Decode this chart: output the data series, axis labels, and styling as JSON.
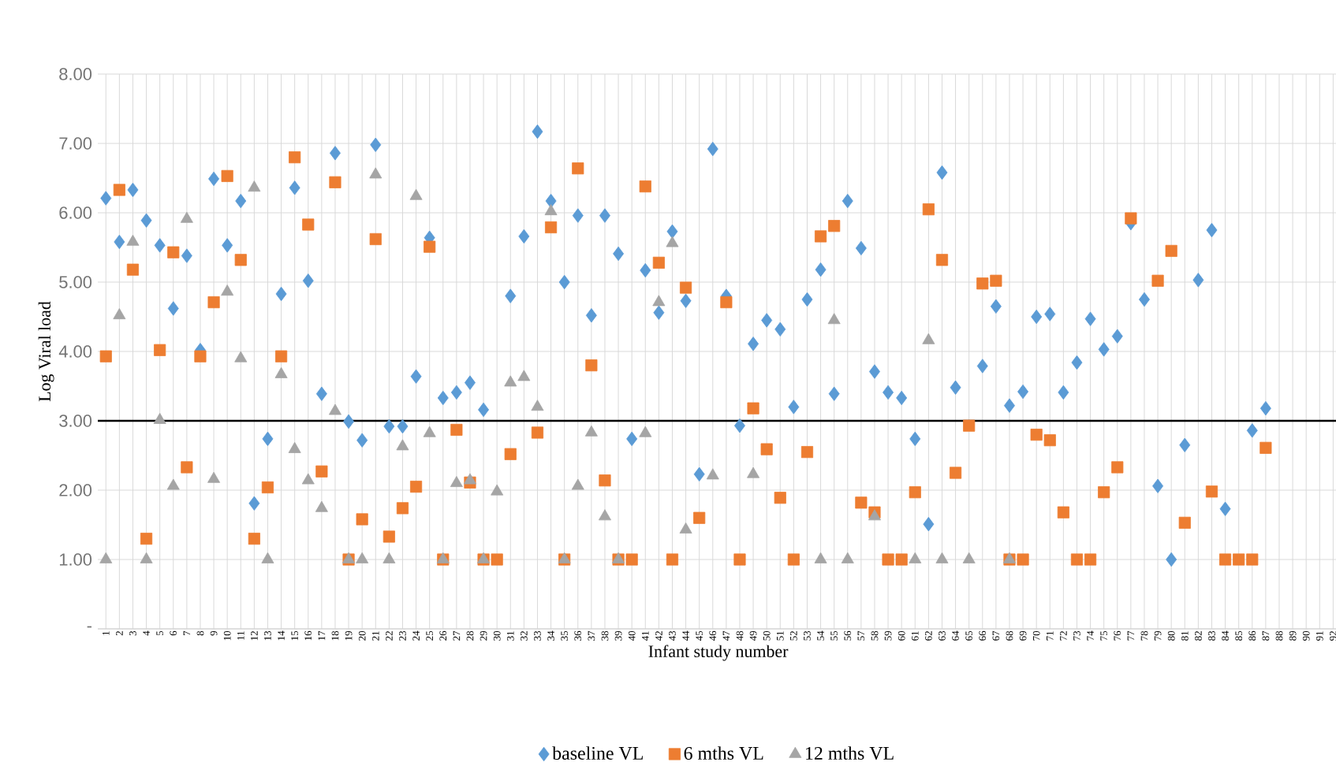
{
  "chart_data": {
    "type": "scatter",
    "xlabel": "Infant study number",
    "ylabel": "Log Viral load",
    "categories": [
      "1",
      "2",
      "3",
      "4",
      "5",
      "6",
      "7",
      "8",
      "9",
      "10",
      "11",
      "12",
      "13",
      "14",
      "15",
      "16",
      "17",
      "18",
      "19",
      "20",
      "21",
      "22",
      "23",
      "24",
      "25",
      "26",
      "27",
      "28",
      "29",
      "30",
      "31",
      "32",
      "33",
      "34",
      "35",
      "36",
      "37",
      "38",
      "39",
      "40",
      "41",
      "42",
      "43",
      "44",
      "45",
      "46",
      "47",
      "48",
      "49",
      "50",
      "51",
      "52",
      "53",
      "54",
      "55",
      "56",
      "57",
      "58",
      "59",
      "60",
      "61",
      "62",
      "63",
      "64",
      "65",
      "66",
      "67",
      "68",
      "69",
      "70",
      "71",
      "72",
      "73",
      "74",
      "75",
      "76",
      "77",
      "78",
      "79",
      "80",
      "81",
      "82",
      "83",
      "84",
      "85",
      "86",
      "87",
      "88",
      "89",
      "90",
      "91",
      "92"
    ],
    "series": [
      {
        "name": "baseline VL",
        "color": "#5b9bd5",
        "marker": "diamond",
        "values": [
          6.21,
          5.58,
          6.33,
          5.89,
          5.53,
          4.62,
          5.38,
          4.02,
          6.49,
          5.53,
          6.17,
          1.81,
          2.74,
          4.83,
          6.36,
          5.02,
          3.39,
          6.86,
          2.99,
          2.72,
          6.98,
          2.92,
          2.92,
          3.64,
          5.64,
          3.33,
          3.41,
          3.55,
          3.16,
          null,
          4.8,
          5.66,
          7.17,
          6.17,
          5.0,
          5.96,
          4.52,
          5.96,
          5.41,
          2.74,
          5.17,
          4.56,
          5.73,
          4.73,
          2.23,
          6.92,
          4.8,
          2.93,
          4.11,
          4.45,
          4.32,
          3.2,
          4.75,
          5.18,
          3.39,
          6.17,
          5.49,
          3.71,
          3.41,
          3.33,
          2.74,
          1.51,
          6.58,
          3.48,
          null,
          3.79,
          4.65,
          3.22,
          3.42,
          4.5,
          4.54,
          3.41,
          3.84,
          4.47,
          4.03,
          4.22,
          5.85,
          4.75,
          2.06,
          1.0,
          2.65,
          5.03,
          5.75,
          1.73,
          null,
          2.86,
          3.18,
          null,
          null,
          null,
          null,
          null
        ]
      },
      {
        "name": "6 mths VL",
        "color": "#ed7d31",
        "marker": "square",
        "values": [
          3.93,
          6.33,
          5.18,
          1.3,
          4.02,
          5.43,
          2.33,
          3.93,
          4.71,
          6.53,
          5.32,
          1.3,
          2.04,
          3.93,
          6.8,
          5.83,
          2.27,
          6.44,
          1.0,
          1.58,
          5.62,
          1.33,
          1.74,
          2.05,
          5.51,
          1.0,
          2.87,
          2.11,
          1.0,
          1.0,
          2.52,
          null,
          2.83,
          5.79,
          1.0,
          6.64,
          3.8,
          2.14,
          1.0,
          1.0,
          6.38,
          5.28,
          1.0,
          4.92,
          1.6,
          null,
          4.71,
          1.0,
          3.18,
          2.59,
          1.89,
          1.0,
          2.55,
          5.66,
          5.81,
          null,
          1.82,
          1.68,
          1.0,
          1.0,
          1.97,
          6.05,
          5.32,
          2.25,
          2.93,
          4.98,
          5.02,
          1.0,
          1.0,
          2.8,
          2.72,
          1.68,
          1.0,
          1.0,
          1.97,
          2.33,
          5.92,
          null,
          5.02,
          5.45,
          1.53,
          null,
          1.98,
          1.0,
          1.0,
          1.0,
          2.61,
          null,
          null,
          null,
          null,
          null
        ]
      },
      {
        "name": "12 mths VL",
        "color": "#a5a5a5",
        "marker": "triangle",
        "values": [
          1.0,
          4.52,
          5.58,
          1.0,
          3.01,
          2.06,
          5.91,
          null,
          2.16,
          4.86,
          3.9,
          6.36,
          1.0,
          3.67,
          2.59,
          2.14,
          1.74,
          3.14,
          1.0,
          1.0,
          6.55,
          1.0,
          2.63,
          6.24,
          2.82,
          1.0,
          2.1,
          2.14,
          1.0,
          1.98,
          3.55,
          3.63,
          3.2,
          6.02,
          1.0,
          2.06,
          2.83,
          1.62,
          1.0,
          null,
          2.82,
          4.71,
          5.56,
          1.43,
          null,
          2.21,
          null,
          null,
          2.23,
          null,
          null,
          null,
          null,
          1.0,
          4.45,
          1.0,
          null,
          1.62,
          null,
          null,
          1.0,
          4.16,
          1.0,
          null,
          1.0,
          null,
          null,
          1.0,
          null,
          null,
          null,
          null,
          null,
          null,
          null,
          null,
          null,
          null,
          null,
          null,
          null,
          null,
          null,
          null,
          null,
          null,
          null,
          null,
          null,
          null,
          null,
          null
        ]
      }
    ],
    "ylim": [
      0,
      8
    ],
    "yticks": [
      {
        "value": 0,
        "label": "-"
      },
      {
        "value": 1,
        "label": "1.00"
      },
      {
        "value": 2,
        "label": "2.00"
      },
      {
        "value": 3,
        "label": "3.00"
      },
      {
        "value": 4,
        "label": "4.00"
      },
      {
        "value": 5,
        "label": "5.00"
      },
      {
        "value": 6,
        "label": "6.00"
      },
      {
        "value": 7,
        "label": "7.00"
      },
      {
        "value": 8,
        "label": "8.00"
      }
    ],
    "ref_lines": [
      {
        "axis": "y",
        "value": 3,
        "color": "#000000"
      }
    ],
    "grid": true,
    "legend": "bottom"
  }
}
